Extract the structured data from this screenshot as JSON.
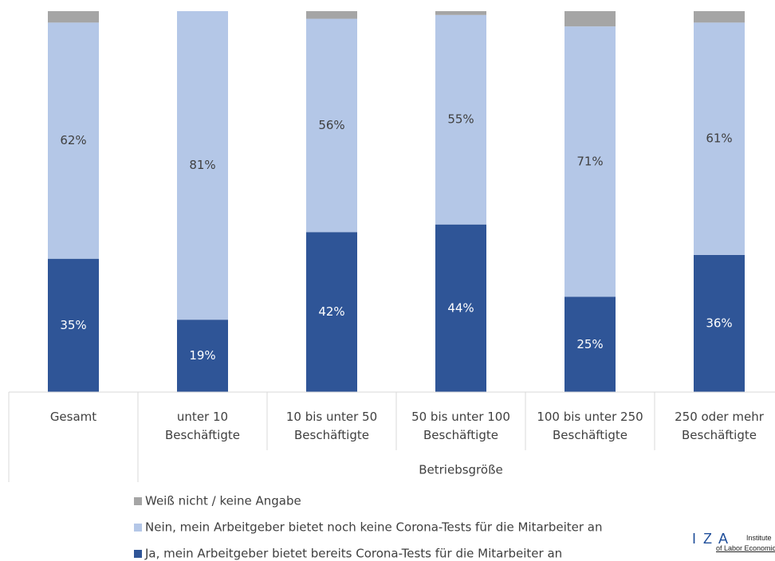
{
  "chart_data": {
    "type": "stacked_bar",
    "categories": [
      "Gesamt",
      "unter 10\nBeschäftigte",
      "10 bis unter 50\nBeschäftigte",
      "50 bis unter 100\nBeschäftigte",
      "100 bis unter 250\nBeschäftigte",
      "250 oder mehr\nBeschäftigte"
    ],
    "x_label": "Betriebsgröße",
    "ylim": [
      0,
      100
    ],
    "series": [
      {
        "name": "Ja, mein Arbeitgeber bietet bereits Corona-Tests für die Mitarbeiter an",
        "color": "#2f5597",
        "values": [
          35,
          19,
          42,
          44,
          25,
          36
        ],
        "value_labels": [
          "35%",
          "19%",
          "42%",
          "44%",
          "25%",
          "36%"
        ]
      },
      {
        "name": "Nein, mein Arbeitgeber bietet noch keine Corona-Tests für die Mitarbeiter an",
        "color": "#b4c7e7",
        "values": [
          62,
          81,
          56,
          55,
          71,
          61
        ],
        "value_labels": [
          "62%",
          "81%",
          "56%",
          "55%",
          "71%",
          "61%"
        ]
      },
      {
        "name": "Weiß nicht / keine Angabe",
        "color": "#a5a5a5",
        "values": [
          3,
          0,
          2,
          1,
          4,
          3
        ]
      }
    ],
    "legend": "bottom"
  },
  "logo": {
    "mark": "I Z A",
    "line1": "Institute",
    "line2": "of Labor Economics"
  }
}
